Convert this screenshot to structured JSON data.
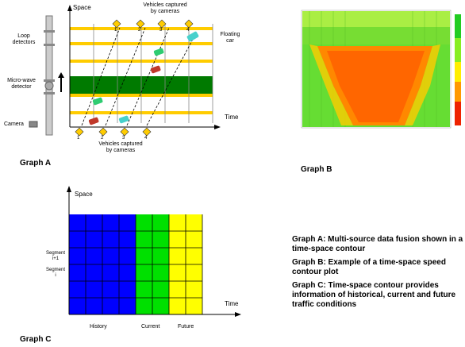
{
  "graph_a": {
    "label": "Graph A",
    "y_axis": "Space",
    "x_axis": "Time",
    "vehicles_top": "Vehicles captured\nby cameras",
    "vehicles_bottom": "Vehicles captured\nby cameras",
    "floating_car": "Floating\ncar",
    "loop_detectors": "Loop\ndetectors",
    "microwave": "Micro-wave\ndetector",
    "camera": "Camera",
    "top_nums": [
      "1",
      "2",
      "3",
      "4"
    ],
    "bottom_nums": [
      "1",
      "2",
      "3",
      "4"
    ]
  },
  "graph_b": {
    "label": "Graph B"
  },
  "graph_c": {
    "label": "Graph C",
    "y_axis": "Space",
    "x_axis": "Time",
    "segment_top": "Segment\ni+1",
    "segment_bottom": "Segment\ni",
    "history": "History",
    "current": "Current",
    "future": "Future",
    "colors": {
      "history": "#0000ff",
      "current": "#00e000",
      "future": "#ffff00"
    }
  },
  "captions": [
    "Graph A: Multi-source data fusion shown in a time-space contour",
    "Graph B: Example of a time-space speed contour plot",
    "Graph C: Time-space contour provides information of historical, current and future traffic conditions"
  ]
}
